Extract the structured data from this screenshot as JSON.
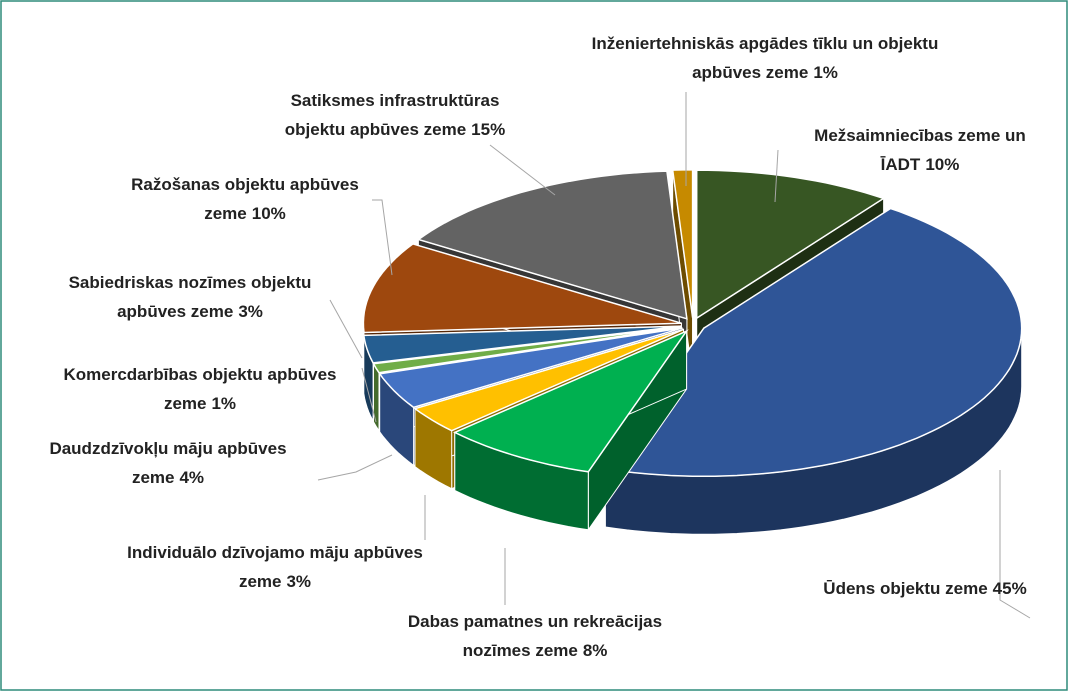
{
  "chart_data": {
    "type": "pie",
    "categories": [
      "Inženiertehniskās apgādes tīklu un objektu apbūves zeme",
      "Mežsaimniecības zeme un ĪADT",
      "Ūdens objektu zeme",
      "Dabas pamatnes un rekreācijas nozīmes zeme",
      "Individuālo dzīvojamo māju apbūves zeme",
      "Daudzdzīvokļu māju apbūves zeme",
      "Komercdarbības objektu apbūves zeme",
      "Sabiedriskas nozīmes objektu apbūves zeme",
      "Ražošanas objektu apbūves zeme",
      "Satiksmes infrastruktūras objektu apbūves zeme"
    ],
    "values": [
      1,
      10,
      45,
      8,
      3,
      4,
      1,
      3,
      10,
      15
    ],
    "value_labels": [
      "1%",
      "10%",
      "45%",
      "8%",
      "3%",
      "4%",
      "1%",
      "3%",
      "10%",
      "15%"
    ],
    "colors": [
      "#c68a00",
      "#375623",
      "#2f5597",
      "#00b050",
      "#ffc000",
      "#4472c4",
      "#70ad47",
      "#255e91",
      "#9e480e",
      "#636363"
    ]
  }
}
